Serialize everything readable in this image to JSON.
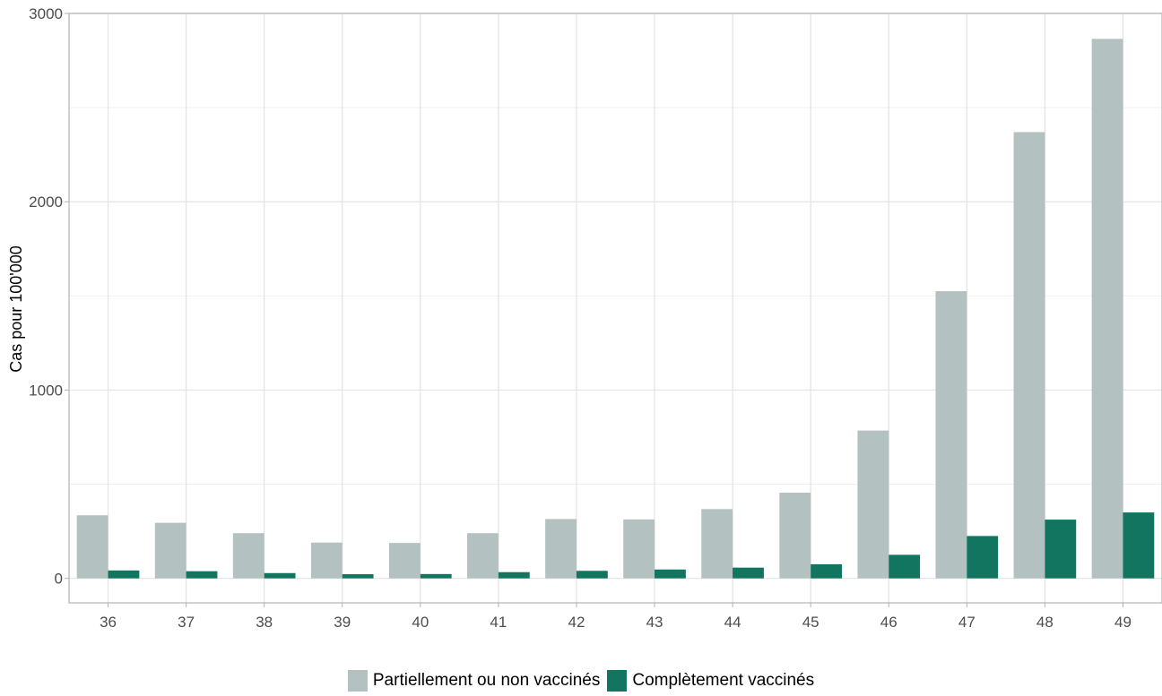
{
  "chart_data": {
    "type": "bar",
    "title": "",
    "xlabel": "",
    "ylabel": "Cas pour 100'000",
    "ylim": [
      -130,
      3000
    ],
    "yticks": [
      0,
      1000,
      2000,
      3000
    ],
    "grid": true,
    "legend_position": "bottom",
    "categories": [
      "36",
      "37",
      "38",
      "39",
      "40",
      "41",
      "42",
      "43",
      "44",
      "45",
      "46",
      "47",
      "48",
      "49"
    ],
    "series": [
      {
        "name": "Partiellement ou non vaccinés",
        "color": "#b3c1c0",
        "values": [
          335,
          295,
          240,
          190,
          188,
          240,
          315,
          313,
          368,
          455,
          785,
          1525,
          2370,
          2865
        ]
      },
      {
        "name": "Complètement vaccinés",
        "color": "#117560",
        "values": [
          42,
          38,
          28,
          22,
          23,
          33,
          40,
          47,
          57,
          75,
          125,
          225,
          312,
          350
        ]
      }
    ]
  }
}
